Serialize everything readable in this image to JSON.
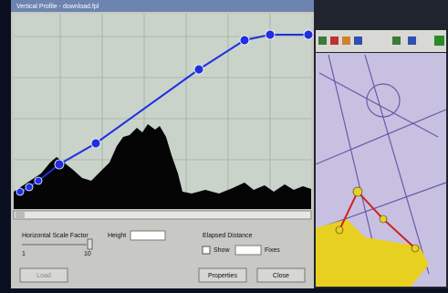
{
  "window": {
    "title": "Vertical Profile - download.fpl"
  },
  "controls": {
    "scale_label": "Horizontal Scale Factor",
    "scale_min": "1",
    "scale_max": "10",
    "height_label": "Height",
    "distance_label": "Elapsed Distance",
    "show_label": "Show",
    "fixes_label": "Fixes"
  },
  "buttons": {
    "load": "Load",
    "properties": "Properties",
    "close": "Close"
  }
}
